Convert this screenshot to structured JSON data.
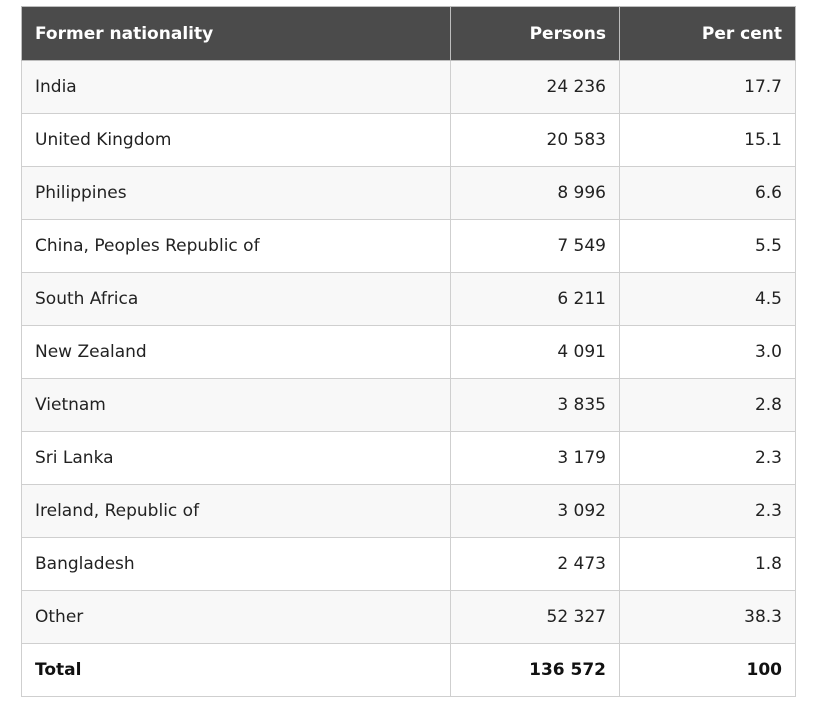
{
  "table": {
    "headers": [
      "Former nationality",
      "Persons",
      "Per cent"
    ],
    "rows": [
      {
        "nationality": "India",
        "persons": "24 236",
        "percent": "17.7"
      },
      {
        "nationality": "United Kingdom",
        "persons": "20 583",
        "percent": "15.1"
      },
      {
        "nationality": "Philippines",
        "persons": "8 996",
        "percent": "6.6"
      },
      {
        "nationality": "China, Peoples Republic of",
        "persons": "7 549",
        "percent": "5.5"
      },
      {
        "nationality": "South Africa",
        "persons": "6 211",
        "percent": "4.5"
      },
      {
        "nationality": "New Zealand",
        "persons": "4 091",
        "percent": "3.0"
      },
      {
        "nationality": "Vietnam",
        "persons": "3 835",
        "percent": "2.8"
      },
      {
        "nationality": "Sri Lanka",
        "persons": "3 179",
        "percent": "2.3"
      },
      {
        "nationality": "Ireland, Republic of",
        "persons": "3 092",
        "percent": "2.3"
      },
      {
        "nationality": "Bangladesh",
        "persons": "2 473",
        "percent": "1.8"
      },
      {
        "nationality": "Other",
        "persons": "52 327",
        "percent": "38.3"
      }
    ],
    "total": {
      "label": "Total",
      "persons": "136 572",
      "percent": "100"
    }
  },
  "colors": {
    "header_bg": "#4b4b4b",
    "header_text": "#ffffff",
    "row_stripe": "#f8f8f8",
    "border": "#cfcfcf"
  }
}
